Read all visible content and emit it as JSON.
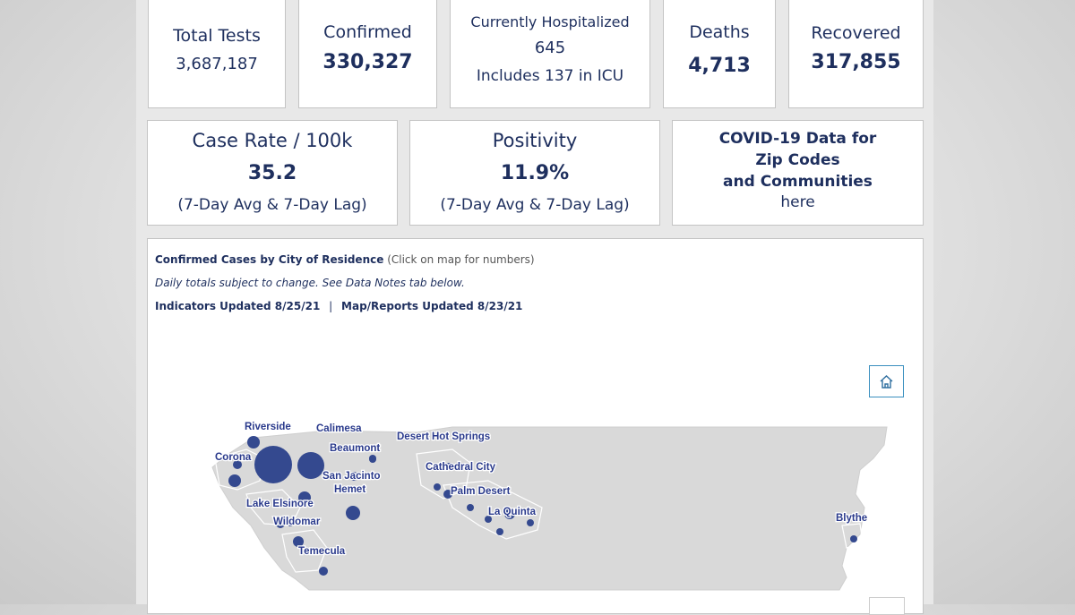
{
  "stats_row1": [
    {
      "label": "Total Tests",
      "value": "3,687,187"
    },
    {
      "label": "Confirmed",
      "value": "330,327"
    },
    {
      "label": "Currently Hospitalized",
      "value": "645",
      "sub": "Includes 137 in ICU"
    },
    {
      "label": "Deaths",
      "value": "4,713"
    },
    {
      "label": "Recovered",
      "value": "317,855"
    }
  ],
  "stats_row2": {
    "case_rate": {
      "label": "Case Rate / 100k",
      "value": "35.2",
      "sub": "(7-Day Avg & 7-Day Lag)"
    },
    "positivity": {
      "label": "Positivity",
      "value": "11.9%",
      "sub": "(7-Day Avg & 7-Day Lag)"
    },
    "zip_link": {
      "line1": "COVID-19 Data for",
      "line2": "Zip Codes",
      "line3": "and Communities",
      "link": "here"
    }
  },
  "map": {
    "title": "Confirmed Cases by City of Residence",
    "title_note": "(Click on map for numbers)",
    "notice": "Daily totals subject to change. See Data Notes tab below.",
    "indicators_updated": "Indicators Updated 8/25/21",
    "separator": "|",
    "reports_updated": "Map/Reports Updated 8/23/21",
    "home_icon": "home-icon",
    "cities": [
      {
        "name": "Riverside"
      },
      {
        "name": "Calimesa"
      },
      {
        "name": "Desert Hot Springs"
      },
      {
        "name": "Beaumont"
      },
      {
        "name": "Corona"
      },
      {
        "name": "San Jacinto"
      },
      {
        "name": "Cathedral City"
      },
      {
        "name": "Hemet"
      },
      {
        "name": "Palm Desert"
      },
      {
        "name": "Lake Elsinore"
      },
      {
        "name": "La Quinta"
      },
      {
        "name": "Wildomar"
      },
      {
        "name": "Temecula"
      },
      {
        "name": "Blythe"
      }
    ],
    "colors": {
      "bubble": "#34498f",
      "land": "#d9d9d9",
      "label": "#2a3a8c"
    }
  }
}
